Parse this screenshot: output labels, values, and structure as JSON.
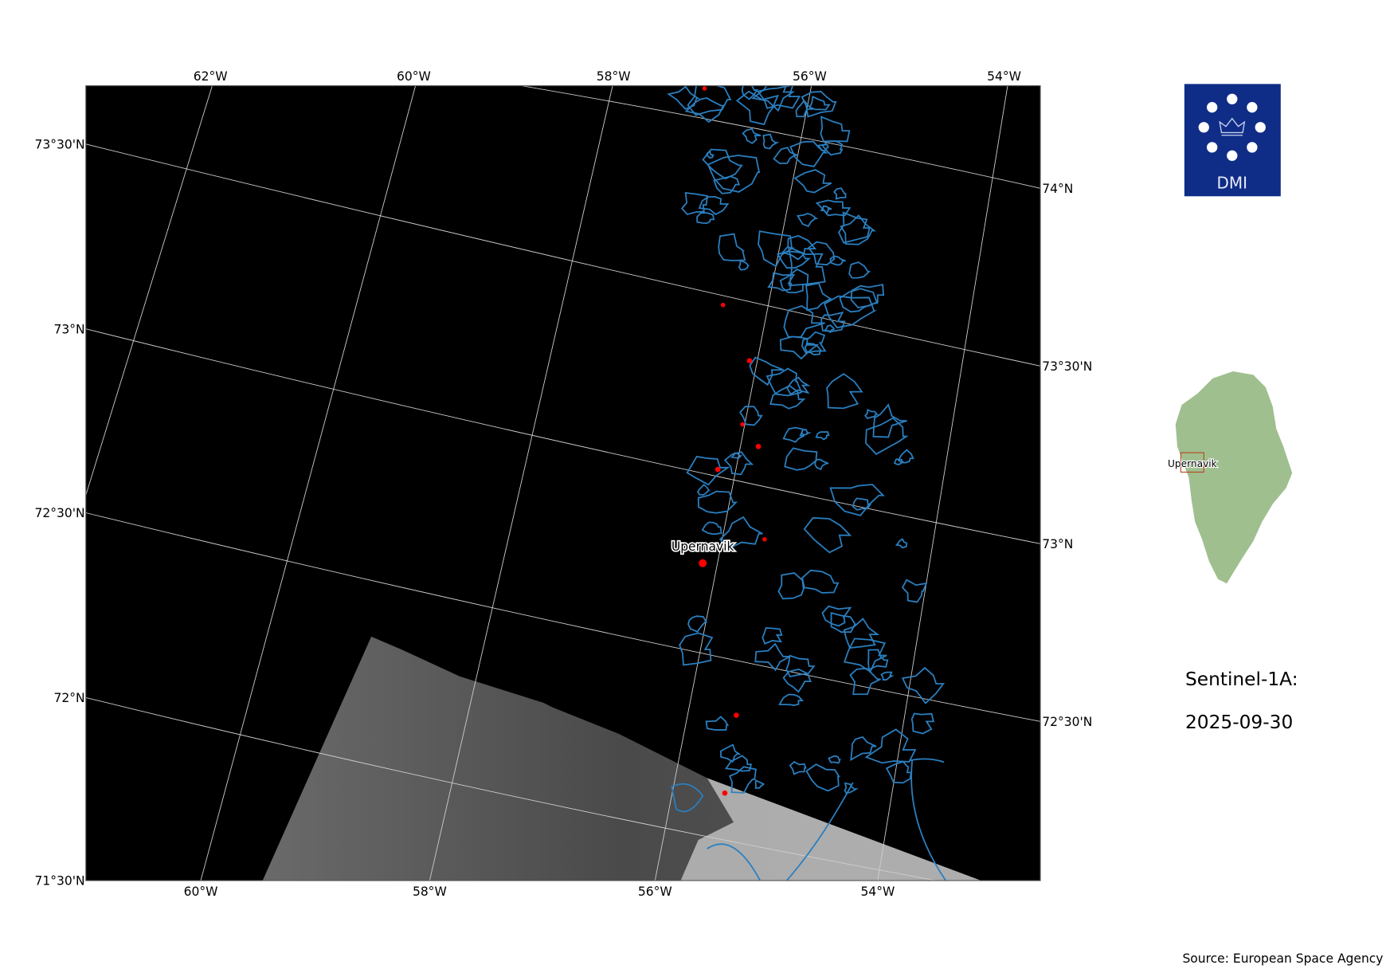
{
  "map": {
    "top_ticks": [
      "62°W",
      "60°W",
      "58°W",
      "56°W",
      "54°W"
    ],
    "bottom_ticks": [
      "60°W",
      "58°W",
      "56°W",
      "54°W"
    ],
    "left_ticks": [
      "73°30'N",
      "73°N",
      "72°30'N",
      "72°N",
      "71°30'N"
    ],
    "right_ticks": [
      "74°N",
      "73°30'N",
      "73°N",
      "72°30'N"
    ],
    "place_label": "Upernavik",
    "colors": {
      "coastline": "#2a7fc0",
      "settlement": "#ff0000",
      "ocean": "#000000"
    }
  },
  "logo": {
    "text": "DMI",
    "color": "#0f2d86"
  },
  "inset": {
    "label": "Upernavik",
    "land_color": "#9fbf8f"
  },
  "info": {
    "satellite": "Sentinel-1A:",
    "date": "2025-09-30"
  },
  "source": "Source: European Space Agency"
}
